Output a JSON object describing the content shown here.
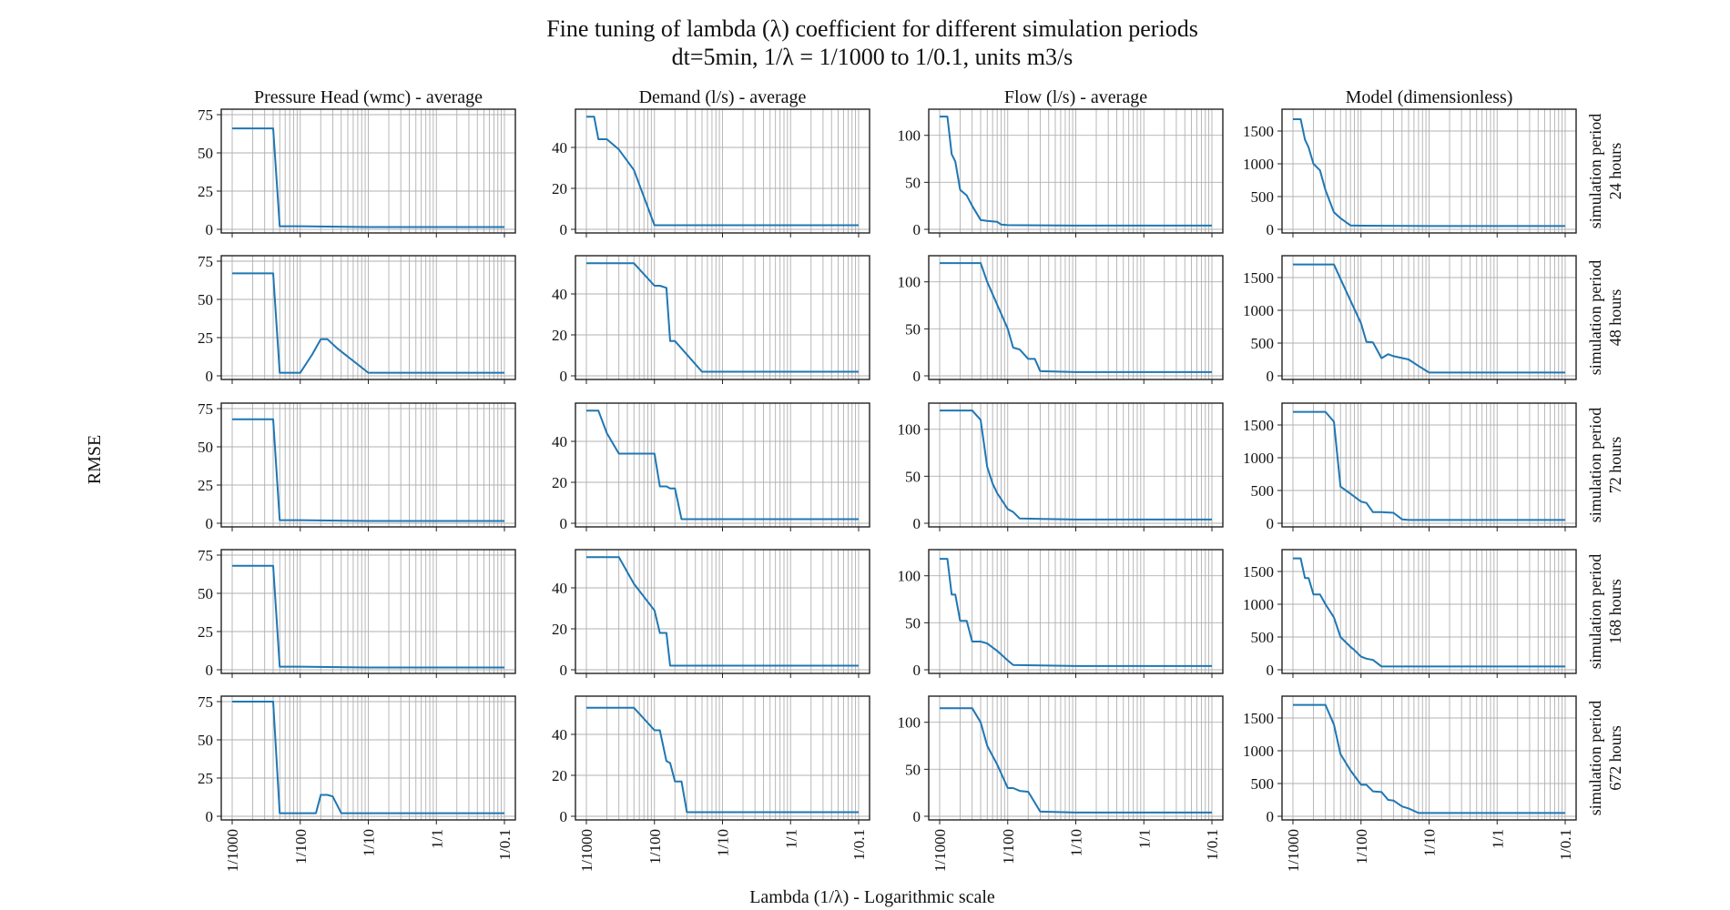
{
  "chart_data": {
    "type": "line",
    "title": "Fine tuning of lambda (λ) coefficient for different simulation periods",
    "subtitle": "dt=5min, 1/λ = 1/1000 to 1/0.1, units m3/s",
    "ylabel": "RMSE",
    "xlabel": "Lambda (1/λ) - Logarithmic scale",
    "xscale": "log",
    "xlim": [
      0.001,
      10
    ],
    "x_ticks": [
      0.001,
      0.01,
      0.1,
      1,
      10
    ],
    "x_tick_labels": [
      "1/1000",
      "1/100",
      "1/10",
      "1/1",
      "1/0.1"
    ],
    "grid": true,
    "columns": [
      {
        "title": "Pressure Head (wmc) - average",
        "ylim": [
          0,
          75
        ],
        "yticks": [
          0,
          25,
          50,
          75
        ]
      },
      {
        "title": "Demand (l/s) - average",
        "ylim": [
          0,
          56
        ],
        "yticks": [
          0,
          20,
          40
        ]
      },
      {
        "title": "Flow (l/s) - average",
        "ylim": [
          0,
          122
        ],
        "yticks": [
          0,
          50,
          100
        ]
      },
      {
        "title": "Model (dimensionless)",
        "ylim": [
          0,
          1750
        ],
        "yticks": [
          0,
          500,
          1000,
          1500
        ]
      }
    ],
    "rows": [
      {
        "label1": "simulation period",
        "label2": "24 hours"
      },
      {
        "label1": "simulation period",
        "label2": "48 hours"
      },
      {
        "label1": "simulation period",
        "label2": "72 hours"
      },
      {
        "label1": "simulation period",
        "label2": "168 hours"
      },
      {
        "label1": "simulation period",
        "label2": "672 hours"
      }
    ],
    "panels": [
      [
        {
          "x": [
            0.001,
            0.004,
            0.005,
            0.01,
            0.1,
            10
          ],
          "y": [
            66,
            66,
            2,
            2,
            1.5,
            1.5
          ]
        },
        {
          "x": [
            0.001,
            0.0013,
            0.0015,
            0.002,
            0.003,
            0.005,
            0.01,
            0.1,
            10
          ],
          "y": [
            55,
            55,
            44,
            44,
            39,
            29,
            2,
            2,
            2
          ]
        },
        {
          "x": [
            0.001,
            0.0013,
            0.0015,
            0.0017,
            0.002,
            0.0025,
            0.003,
            0.004,
            0.005,
            0.007,
            0.008,
            0.01,
            0.1,
            10
          ],
          "y": [
            120,
            120,
            80,
            72,
            42,
            36,
            25,
            10,
            9,
            8,
            5,
            4.5,
            4,
            4
          ]
        },
        {
          "x": [
            0.001,
            0.0013,
            0.0015,
            0.0017,
            0.002,
            0.0025,
            0.003,
            0.004,
            0.005,
            0.007,
            0.01,
            0.1,
            10
          ],
          "y": [
            1680,
            1680,
            1370,
            1250,
            1000,
            900,
            600,
            260,
            170,
            60,
            55,
            50,
            50
          ]
        }
      ],
      [
        {
          "x": [
            0.001,
            0.004,
            0.005,
            0.01,
            0.015,
            0.02,
            0.025,
            0.035,
            0.1,
            10
          ],
          "y": [
            67,
            67,
            2,
            2,
            14,
            24,
            24,
            18,
            2,
            2
          ]
        },
        {
          "x": [
            0.001,
            0.005,
            0.01,
            0.012,
            0.015,
            0.017,
            0.02,
            0.05,
            0.1,
            10
          ],
          "y": [
            55,
            55,
            44,
            44,
            43,
            17,
            17,
            2,
            2,
            2
          ]
        },
        {
          "x": [
            0.001,
            0.004,
            0.005,
            0.01,
            0.012,
            0.015,
            0.02,
            0.025,
            0.03,
            0.1,
            10
          ],
          "y": [
            120,
            120,
            100,
            50,
            30,
            28,
            18,
            18,
            5,
            4,
            4
          ]
        },
        {
          "x": [
            0.001,
            0.004,
            0.005,
            0.01,
            0.012,
            0.015,
            0.02,
            0.025,
            0.03,
            0.05,
            0.07,
            0.1,
            10
          ],
          "y": [
            1700,
            1700,
            1480,
            800,
            520,
            510,
            270,
            330,
            300,
            250,
            150,
            50,
            50
          ]
        }
      ],
      [
        {
          "x": [
            0.001,
            0.004,
            0.005,
            0.01,
            0.1,
            10
          ],
          "y": [
            68,
            68,
            2,
            2,
            1.5,
            1.5
          ]
        },
        {
          "x": [
            0.001,
            0.0015,
            0.002,
            0.003,
            0.005,
            0.01,
            0.012,
            0.015,
            0.017,
            0.02,
            0.025,
            0.03,
            0.1,
            10
          ],
          "y": [
            55,
            55,
            44,
            34,
            34,
            34,
            18,
            18,
            17,
            17,
            2,
            2,
            2,
            2
          ]
        },
        {
          "x": [
            0.001,
            0.003,
            0.004,
            0.005,
            0.006,
            0.007,
            0.01,
            0.012,
            0.015,
            0.1,
            10
          ],
          "y": [
            120,
            120,
            110,
            60,
            42,
            32,
            15,
            12,
            5,
            4,
            4
          ]
        },
        {
          "x": [
            0.001,
            0.003,
            0.004,
            0.005,
            0.007,
            0.01,
            0.012,
            0.015,
            0.02,
            0.03,
            0.04,
            0.05,
            0.1,
            10
          ],
          "y": [
            1700,
            1700,
            1550,
            560,
            450,
            330,
            310,
            170,
            170,
            160,
            60,
            50,
            50,
            50
          ]
        }
      ],
      [
        {
          "x": [
            0.001,
            0.004,
            0.005,
            0.01,
            0.1,
            10
          ],
          "y": [
            68,
            68,
            2,
            2,
            1.5,
            1.5
          ]
        },
        {
          "x": [
            0.001,
            0.003,
            0.005,
            0.01,
            0.012,
            0.015,
            0.017,
            0.02,
            0.1,
            10
          ],
          "y": [
            55,
            55,
            42,
            29,
            18,
            18,
            2,
            2,
            2,
            2
          ]
        },
        {
          "x": [
            0.001,
            0.0013,
            0.0015,
            0.0017,
            0.002,
            0.0025,
            0.003,
            0.004,
            0.005,
            0.007,
            0.01,
            0.012,
            0.1,
            10
          ],
          "y": [
            118,
            118,
            80,
            80,
            52,
            52,
            30,
            30,
            28,
            20,
            10,
            5,
            4,
            4
          ]
        },
        {
          "x": [
            0.001,
            0.0013,
            0.0015,
            0.0017,
            0.002,
            0.0025,
            0.003,
            0.004,
            0.005,
            0.007,
            0.008,
            0.01,
            0.012,
            0.015,
            0.02,
            0.03,
            0.1,
            10
          ],
          "y": [
            1700,
            1700,
            1400,
            1400,
            1150,
            1150,
            1000,
            800,
            500,
            350,
            300,
            200,
            170,
            150,
            50,
            50,
            50,
            50
          ]
        }
      ],
      [
        {
          "x": [
            0.001,
            0.004,
            0.005,
            0.01,
            0.017,
            0.02,
            0.025,
            0.03,
            0.04,
            0.1,
            10
          ],
          "y": [
            75,
            75,
            2,
            2,
            2,
            14,
            14,
            13,
            2,
            2,
            2
          ]
        },
        {
          "x": [
            0.001,
            0.005,
            0.01,
            0.012,
            0.015,
            0.017,
            0.02,
            0.025,
            0.03,
            0.1,
            10
          ],
          "y": [
            53,
            53,
            42,
            42,
            27,
            26,
            17,
            17,
            2,
            2,
            2
          ]
        },
        {
          "x": [
            0.001,
            0.003,
            0.004,
            0.005,
            0.007,
            0.01,
            0.012,
            0.015,
            0.02,
            0.03,
            0.1,
            10
          ],
          "y": [
            115,
            115,
            100,
            75,
            55,
            30,
            30,
            27,
            26,
            5,
            4,
            4
          ]
        },
        {
          "x": [
            0.001,
            0.003,
            0.004,
            0.005,
            0.007,
            0.01,
            0.012,
            0.015,
            0.02,
            0.025,
            0.03,
            0.04,
            0.05,
            0.07,
            0.1,
            10
          ],
          "y": [
            1700,
            1700,
            1400,
            950,
            700,
            480,
            480,
            380,
            370,
            250,
            240,
            150,
            120,
            50,
            50,
            50
          ]
        }
      ]
    ]
  }
}
